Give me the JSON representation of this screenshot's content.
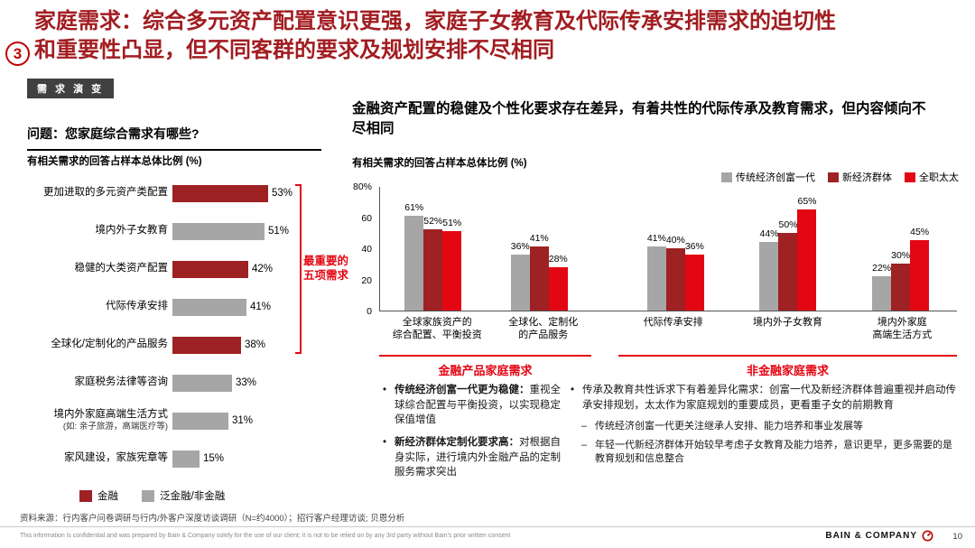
{
  "accent_colors": {
    "dark_red": "#9e2123",
    "bright_red": "#e30613",
    "gray": "#a6a6a6",
    "title_red": "#a11d21"
  },
  "header": {
    "badge": "3",
    "title_lead": "家庭需求：",
    "title_rest": "综合多元资产配置意识更强，家庭子女教育及代际传承安排需求的迫切性\n和重要性凸显，但不同客群的要求及规划安排不尽相同",
    "tab": "需 求 演 变"
  },
  "left_panel": {
    "question": "问题：您家庭综合需求有哪些?",
    "subtitle": "有相关需求的回答占样本总体比例 (%)",
    "bracket_label": "最重要的\n五项需求",
    "legend": [
      {
        "label": "金融",
        "color": "#9e2123"
      },
      {
        "label": "泛金融/非金融",
        "color": "#a6a6a6"
      }
    ]
  },
  "right_panel": {
    "heading": "金融资产配置的稳健及个性化要求存在差异，有着共性的代际传承及教育需求，但内容倾向不\n尽相同",
    "subtitle": "有相关需求的回答占样本总体比例 (%)",
    "section_labels": [
      "金融产品家庭需求",
      "非金融家庭需求"
    ]
  },
  "chart_data": [
    {
      "type": "bar",
      "orientation": "horizontal",
      "unit": "%",
      "title": "问题：您家庭综合需求有哪些?",
      "subtitle": "有相关需求的回答占样本总体比例 (%)",
      "xlim": [
        0,
        60
      ],
      "annotation": "最重要的五项需求 (applies to top 5 bars)",
      "group_colors": {
        "金融": "#9e2123",
        "泛金融/非金融": "#a6a6a6"
      },
      "items": [
        {
          "label": "更加进取的多元资产类配置",
          "value": 53,
          "group": "金融"
        },
        {
          "label": "境内外子女教育",
          "value": 51,
          "group": "泛金融/非金融"
        },
        {
          "label": "稳健的大类资产配置",
          "value": 42,
          "group": "金融"
        },
        {
          "label": "代际传承安排",
          "value": 41,
          "group": "泛金融/非金融"
        },
        {
          "label": "全球化/定制化的产品服务",
          "value": 38,
          "group": "金融"
        },
        {
          "label": "家庭税务法律等咨询",
          "value": 33,
          "group": "泛金融/非金融"
        },
        {
          "label": "境内外家庭高端生活方式",
          "sub": "(如: 亲子旅游，高端医疗等)",
          "value": 31,
          "group": "泛金融/非金融"
        },
        {
          "label": "家风建设，家族宪章等",
          "value": 15,
          "group": "泛金融/非金融"
        }
      ]
    },
    {
      "type": "bar",
      "orientation": "vertical-grouped",
      "unit": "%",
      "subtitle": "有相关需求的回答占样本总体比例 (%)",
      "ylim": [
        0,
        80
      ],
      "y_ticks": [
        "80%",
        "60",
        "40",
        "20",
        "0"
      ],
      "legend_position": "top-right",
      "series": [
        {
          "name": "传统经济创富一代",
          "color": "#a6a6a6"
        },
        {
          "name": "新经济群体",
          "color": "#9e2123"
        },
        {
          "name": "全职太太",
          "color": "#e30613"
        }
      ],
      "groups": [
        {
          "label": "全球家族资产的\n综合配置、平衡投资",
          "section": 0,
          "values": [
            61,
            52,
            51
          ]
        },
        {
          "label": "全球化、定制化\n的产品服务",
          "section": 0,
          "values": [
            36,
            41,
            28
          ]
        },
        {
          "label": "代际传承安排",
          "section": 1,
          "values": [
            41,
            40,
            36
          ]
        },
        {
          "label": "境内外子女教育",
          "section": 1,
          "values": [
            44,
            50,
            65
          ]
        },
        {
          "label": "境内外家庭\n高端生活方式",
          "section": 1,
          "values": [
            22,
            30,
            45
          ]
        }
      ],
      "sections": [
        "金融产品家庭需求",
        "非金融家庭需求"
      ]
    }
  ],
  "insights": {
    "left": [
      {
        "lead": "传统经济创富一代更为稳健：",
        "text": "重视全球综合配置与平衡投资，以实现稳定保值增值"
      },
      {
        "lead": "新经济群体定制化要求高：",
        "text": "对根据自身实际，进行境内外金融产品的定制服务需求突出"
      }
    ],
    "right": {
      "bullet": "传承及教育共性诉求下有着差异化需求：创富一代及新经济群体普遍重视并启动传承安排规划，太太作为家庭规划的重要成员，更看重子女的前期教育",
      "subs": [
        "传统经济创富一代更关注继承人安排、能力培养和事业发展等",
        "年轻一代新经济群体开始较早考虑子女教育及能力培养，意识更早，更多需要的是教育规划和信息整合"
      ]
    }
  },
  "footer": {
    "source": "资料来源：行内客户问卷调研与行内/外客户深度访谈调研（N=约4000）；招行客户经理访谈; 贝恩分析",
    "confidential": "This information is confidential and was prepared by Bain & Company solely for the use of our client; it is not to be relied on by any 3rd party without Bain's prior written consent",
    "logo": "BAIN & COMPANY",
    "page": "10"
  }
}
